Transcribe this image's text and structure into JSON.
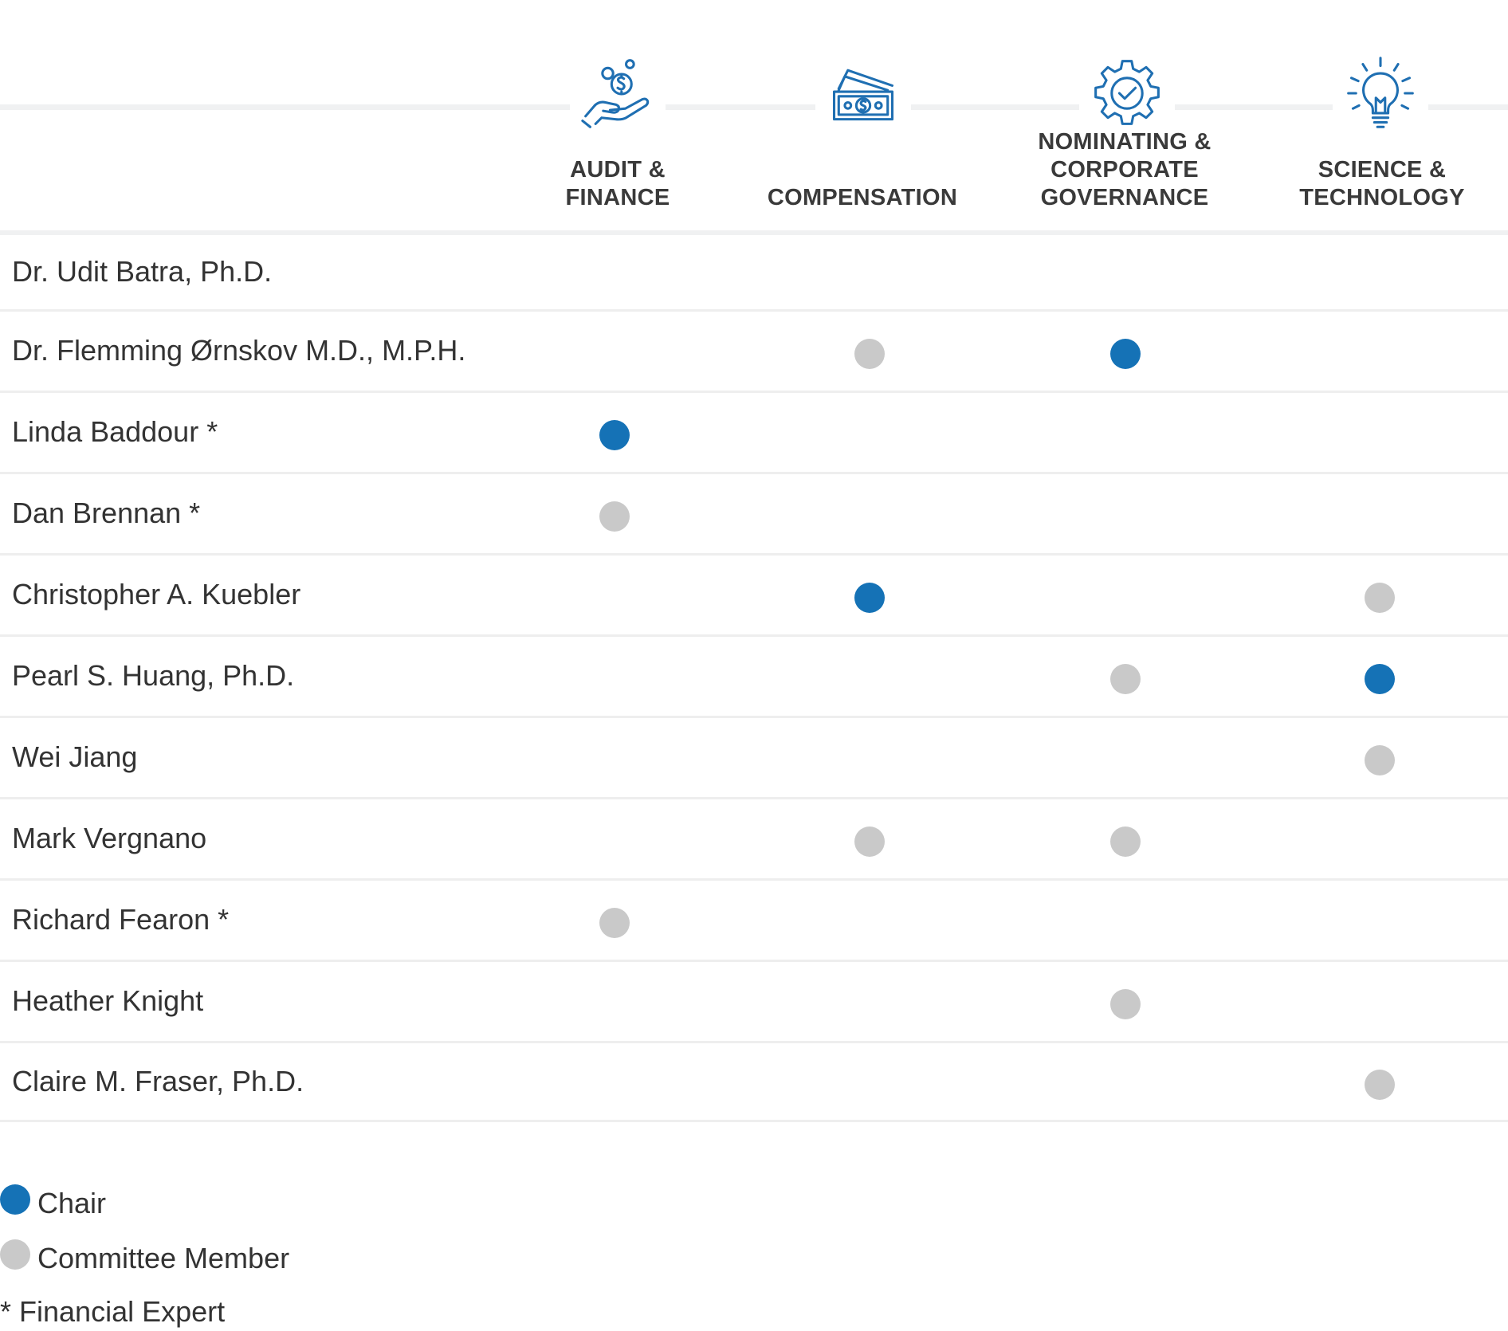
{
  "colors": {
    "chair": "#1572b6",
    "member": "#c9c9c9",
    "icon": "#1f6fb2"
  },
  "committees": [
    {
      "id": "audit",
      "icon": "hand-coin-icon",
      "lines": [
        "AUDIT &",
        "FINANCE"
      ]
    },
    {
      "id": "compensation",
      "icon": "money-stack-icon",
      "lines": [
        "COMPENSATION"
      ]
    },
    {
      "id": "nominating",
      "icon": "gear-check-icon",
      "lines": [
        "NOMINATING &",
        "CORPORATE",
        "GOVERNANCE"
      ]
    },
    {
      "id": "science",
      "icon": "lightbulb-icon",
      "lines": [
        "SCIENCE &",
        "TECHNOLOGY"
      ]
    }
  ],
  "members": [
    {
      "name": "Dr. Udit Batra, Ph.D.",
      "roles": [
        "",
        "",
        "",
        ""
      ]
    },
    {
      "name": "Dr. Flemming Ørnskov M.D., M.P.H.",
      "roles": [
        "",
        "member",
        "chair",
        ""
      ]
    },
    {
      "name": "Linda Baddour *",
      "roles": [
        "chair",
        "",
        "",
        ""
      ]
    },
    {
      "name": "Dan Brennan *",
      "roles": [
        "member",
        "",
        "",
        ""
      ]
    },
    {
      "name": "Christopher A. Kuebler",
      "roles": [
        "",
        "chair",
        "",
        "member"
      ]
    },
    {
      "name": "Pearl S. Huang, Ph.D.",
      "roles": [
        "",
        "",
        "member",
        "chair"
      ]
    },
    {
      "name": "Wei Jiang",
      "roles": [
        "",
        "",
        "",
        "member"
      ]
    },
    {
      "name": "Mark Vergnano",
      "roles": [
        "",
        "member",
        "member",
        ""
      ]
    },
    {
      "name": "Richard Fearon *",
      "roles": [
        "member",
        "",
        "",
        ""
      ]
    },
    {
      "name": "Heather Knight",
      "roles": [
        "",
        "",
        "member",
        ""
      ]
    },
    {
      "name": "Claire M. Fraser, Ph.D.",
      "roles": [
        "",
        "",
        "",
        "member"
      ]
    }
  ],
  "legend": {
    "chair_label": "Chair",
    "member_label": "Committee Member",
    "expert_label": "* Financial Expert"
  }
}
